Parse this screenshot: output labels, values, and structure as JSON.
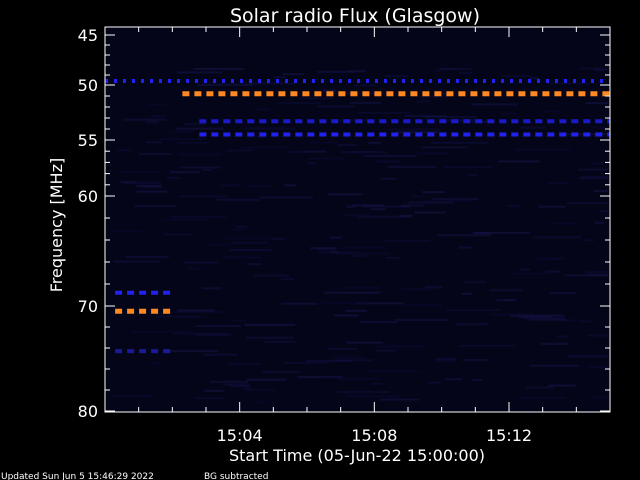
{
  "chart_data": {
    "type": "heatmap",
    "title": "Solar radio Flux (Glasgow)",
    "ylabel": "Frequency [MHz]",
    "xlabel": "Start Time (05-Jun-22 15:00:00)",
    "y_ticks": [
      {
        "value": 45,
        "label": "45"
      },
      {
        "value": 50,
        "label": "50"
      },
      {
        "value": 55,
        "label": "55"
      },
      {
        "value": 60,
        "label": "60"
      },
      {
        "value": 70,
        "label": "70"
      },
      {
        "value": 80,
        "label": "80"
      }
    ],
    "x_ticks": [
      {
        "value": 4,
        "label": "15:04"
      },
      {
        "value": 8,
        "label": "15:08"
      },
      {
        "value": 12,
        "label": "15:12"
      }
    ],
    "xlim": [
      0,
      15
    ],
    "ylim": [
      45,
      80
    ],
    "y_axis_inverted": true,
    "colormap_note": "black background, blue to orange intensity",
    "bands": [
      {
        "freq": 49.6,
        "t_start": 0.0,
        "t_end": 15.0,
        "color": "#2222ee"
      },
      {
        "freq": 50.8,
        "t_start": 2.3,
        "t_end": 15.0,
        "color": "#ff8822"
      },
      {
        "freq": 53.3,
        "t_start": 2.8,
        "t_end": 15.0,
        "color": "#1a1acc"
      },
      {
        "freq": 54.5,
        "t_start": 2.8,
        "t_end": 15.0,
        "color": "#2222ee"
      },
      {
        "freq": 68.8,
        "t_start": 0.3,
        "t_end": 2.0,
        "color": "#2222ee"
      },
      {
        "freq": 70.5,
        "t_start": 0.3,
        "t_end": 2.0,
        "color": "#ff8822"
      },
      {
        "freq": 74.3,
        "t_start": 0.3,
        "t_end": 2.0,
        "color": "#1a1a99"
      }
    ]
  },
  "footer": {
    "updated": "Updated Sun Jun  5 15:46:29 2022",
    "bg_note": "BG subtracted"
  }
}
